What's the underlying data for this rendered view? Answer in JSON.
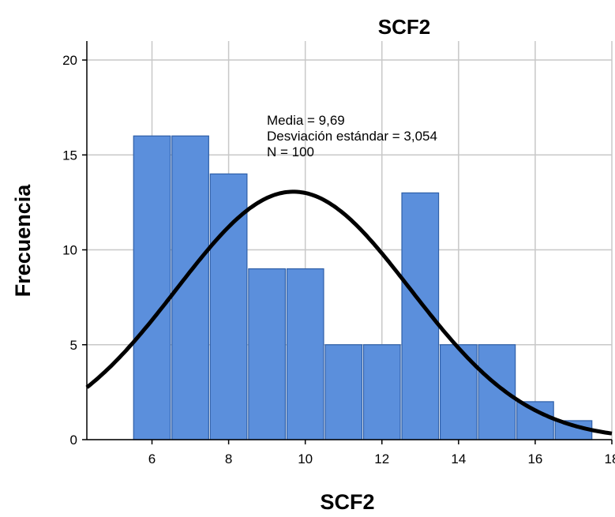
{
  "chart_data": {
    "type": "bar",
    "title": "SCF2",
    "xlabel": "SCF2",
    "ylabel": "Frecuencia",
    "bins": [
      {
        "x0": 5.5,
        "x1": 6.5,
        "count": 16
      },
      {
        "x0": 6.5,
        "x1": 7.5,
        "count": 16
      },
      {
        "x0": 7.5,
        "x1": 8.5,
        "count": 14
      },
      {
        "x0": 8.5,
        "x1": 9.5,
        "count": 9
      },
      {
        "x0": 9.5,
        "x1": 10.5,
        "count": 9
      },
      {
        "x0": 10.5,
        "x1": 11.5,
        "count": 5
      },
      {
        "x0": 11.5,
        "x1": 12.5,
        "count": 5
      },
      {
        "x0": 12.5,
        "x1": 13.5,
        "count": 13
      },
      {
        "x0": 13.5,
        "x1": 14.5,
        "count": 5
      },
      {
        "x0": 14.5,
        "x1": 15.5,
        "count": 5
      },
      {
        "x0": 15.5,
        "x1": 16.5,
        "count": 2
      },
      {
        "x0": 16.5,
        "x1": 17.5,
        "count": 1
      }
    ],
    "xlim": [
      4.3,
      18.0
    ],
    "ylim": [
      0,
      21
    ],
    "xticks": [
      "6",
      "8",
      "10",
      "12",
      "14",
      "16",
      "18"
    ],
    "yticks": [
      "0",
      "5",
      "10",
      "15",
      "20"
    ],
    "grid": true,
    "normal_curve": {
      "mean": 9.69,
      "sd": 3.054,
      "n": 100,
      "bin_width": 1
    },
    "stats_text": [
      "Media = 9,69",
      "Desviación estándar = 3,054",
      "N = 100"
    ],
    "colors": {
      "bar_fill": "#5b8fdc",
      "bar_stroke": "#2e5fa8",
      "curve": "#000000",
      "grid": "#c8c8c8"
    }
  }
}
